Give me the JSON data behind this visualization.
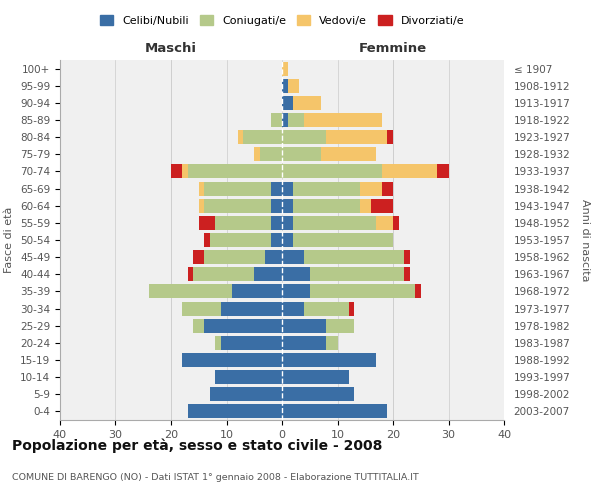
{
  "age_groups": [
    "0-4",
    "5-9",
    "10-14",
    "15-19",
    "20-24",
    "25-29",
    "30-34",
    "35-39",
    "40-44",
    "45-49",
    "50-54",
    "55-59",
    "60-64",
    "65-69",
    "70-74",
    "75-79",
    "80-84",
    "85-89",
    "90-94",
    "95-99",
    "100+"
  ],
  "birth_years": [
    "2003-2007",
    "1998-2002",
    "1993-1997",
    "1988-1992",
    "1983-1987",
    "1978-1982",
    "1973-1977",
    "1968-1972",
    "1963-1967",
    "1958-1962",
    "1953-1957",
    "1948-1952",
    "1943-1947",
    "1938-1942",
    "1933-1937",
    "1928-1932",
    "1923-1927",
    "1918-1922",
    "1913-1917",
    "1908-1912",
    "≤ 1907"
  ],
  "colors": {
    "celibi": "#3a6ea5",
    "coniugati": "#b5c98a",
    "vedovi": "#f5c56a",
    "divorziati": "#cc2020"
  },
  "maschi": {
    "celibi": [
      17,
      13,
      12,
      18,
      11,
      14,
      11,
      9,
      5,
      3,
      2,
      2,
      2,
      2,
      0,
      0,
      0,
      0,
      0,
      0,
      0
    ],
    "coniugati": [
      0,
      0,
      0,
      0,
      1,
      2,
      7,
      15,
      11,
      11,
      11,
      10,
      12,
      12,
      17,
      4,
      7,
      2,
      0,
      0,
      0
    ],
    "vedovi": [
      0,
      0,
      0,
      0,
      0,
      0,
      0,
      0,
      0,
      0,
      0,
      0,
      1,
      1,
      1,
      1,
      1,
      0,
      0,
      0,
      0
    ],
    "divorziati": [
      0,
      0,
      0,
      0,
      0,
      0,
      0,
      0,
      1,
      2,
      1,
      3,
      0,
      0,
      2,
      0,
      0,
      0,
      0,
      0,
      0
    ]
  },
  "femmine": {
    "celibi": [
      19,
      13,
      12,
      17,
      8,
      8,
      4,
      5,
      5,
      4,
      2,
      2,
      2,
      2,
      0,
      0,
      0,
      1,
      2,
      1,
      0
    ],
    "coniugati": [
      0,
      0,
      0,
      0,
      2,
      5,
      8,
      19,
      17,
      18,
      18,
      15,
      12,
      12,
      18,
      7,
      8,
      3,
      0,
      0,
      0
    ],
    "vedovi": [
      0,
      0,
      0,
      0,
      0,
      0,
      0,
      0,
      0,
      0,
      0,
      3,
      2,
      4,
      10,
      10,
      11,
      14,
      5,
      2,
      1
    ],
    "divorziati": [
      0,
      0,
      0,
      0,
      0,
      0,
      1,
      1,
      1,
      1,
      0,
      1,
      4,
      2,
      2,
      0,
      1,
      0,
      0,
      0,
      0
    ]
  },
  "xlim": 40,
  "title": "Popolazione per età, sesso e stato civile - 2008",
  "subtitle": "COMUNE DI BARENGO (NO) - Dati ISTAT 1° gennaio 2008 - Elaborazione TUTTITALIA.IT",
  "ylabel_left": "Fasce di età",
  "ylabel_right": "Anni di nascita",
  "label_maschi": "Maschi",
  "label_femmine": "Femmine",
  "legend_labels": [
    "Celibi/Nubili",
    "Coniugati/e",
    "Vedovi/e",
    "Divorziati/e"
  ]
}
